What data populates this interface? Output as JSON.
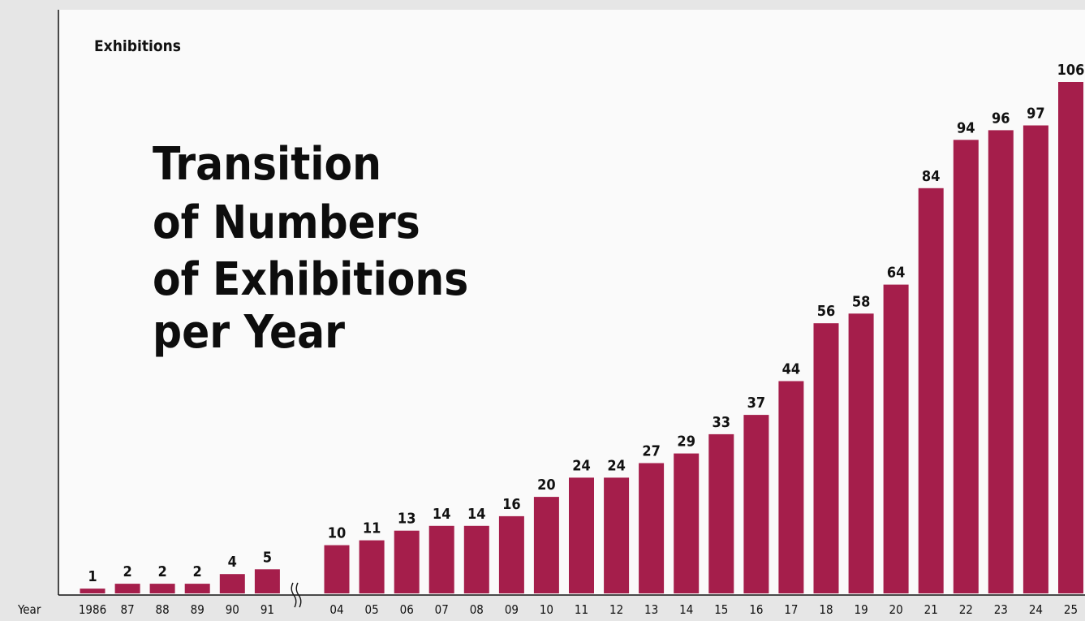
{
  "chart_data": {
    "type": "bar",
    "title_lines": [
      "Transition",
      "of Numbers",
      "of Exhibitions",
      "per Year"
    ],
    "ylabel": "Exhibitions",
    "xlabel": "Year",
    "categories": [
      "1986",
      "87",
      "88",
      "89",
      "90",
      "91",
      "04",
      "05",
      "06",
      "07",
      "08",
      "09",
      "10",
      "11",
      "12",
      "13",
      "14",
      "15",
      "16",
      "17",
      "18",
      "19",
      "20",
      "21",
      "22",
      "23",
      "24",
      "25"
    ],
    "values": [
      1,
      2,
      2,
      2,
      4,
      5,
      10,
      11,
      13,
      14,
      14,
      16,
      20,
      24,
      24,
      27,
      29,
      33,
      37,
      44,
      56,
      58,
      64,
      84,
      94,
      96,
      97,
      106
    ],
    "axis_break_after": "91",
    "ylim": [
      0,
      110
    ],
    "grid": false,
    "legend": "none",
    "colors": {
      "bar": "#a51e4b",
      "plot_background": "#fafafa",
      "page_background": "#e6e6e6"
    }
  }
}
